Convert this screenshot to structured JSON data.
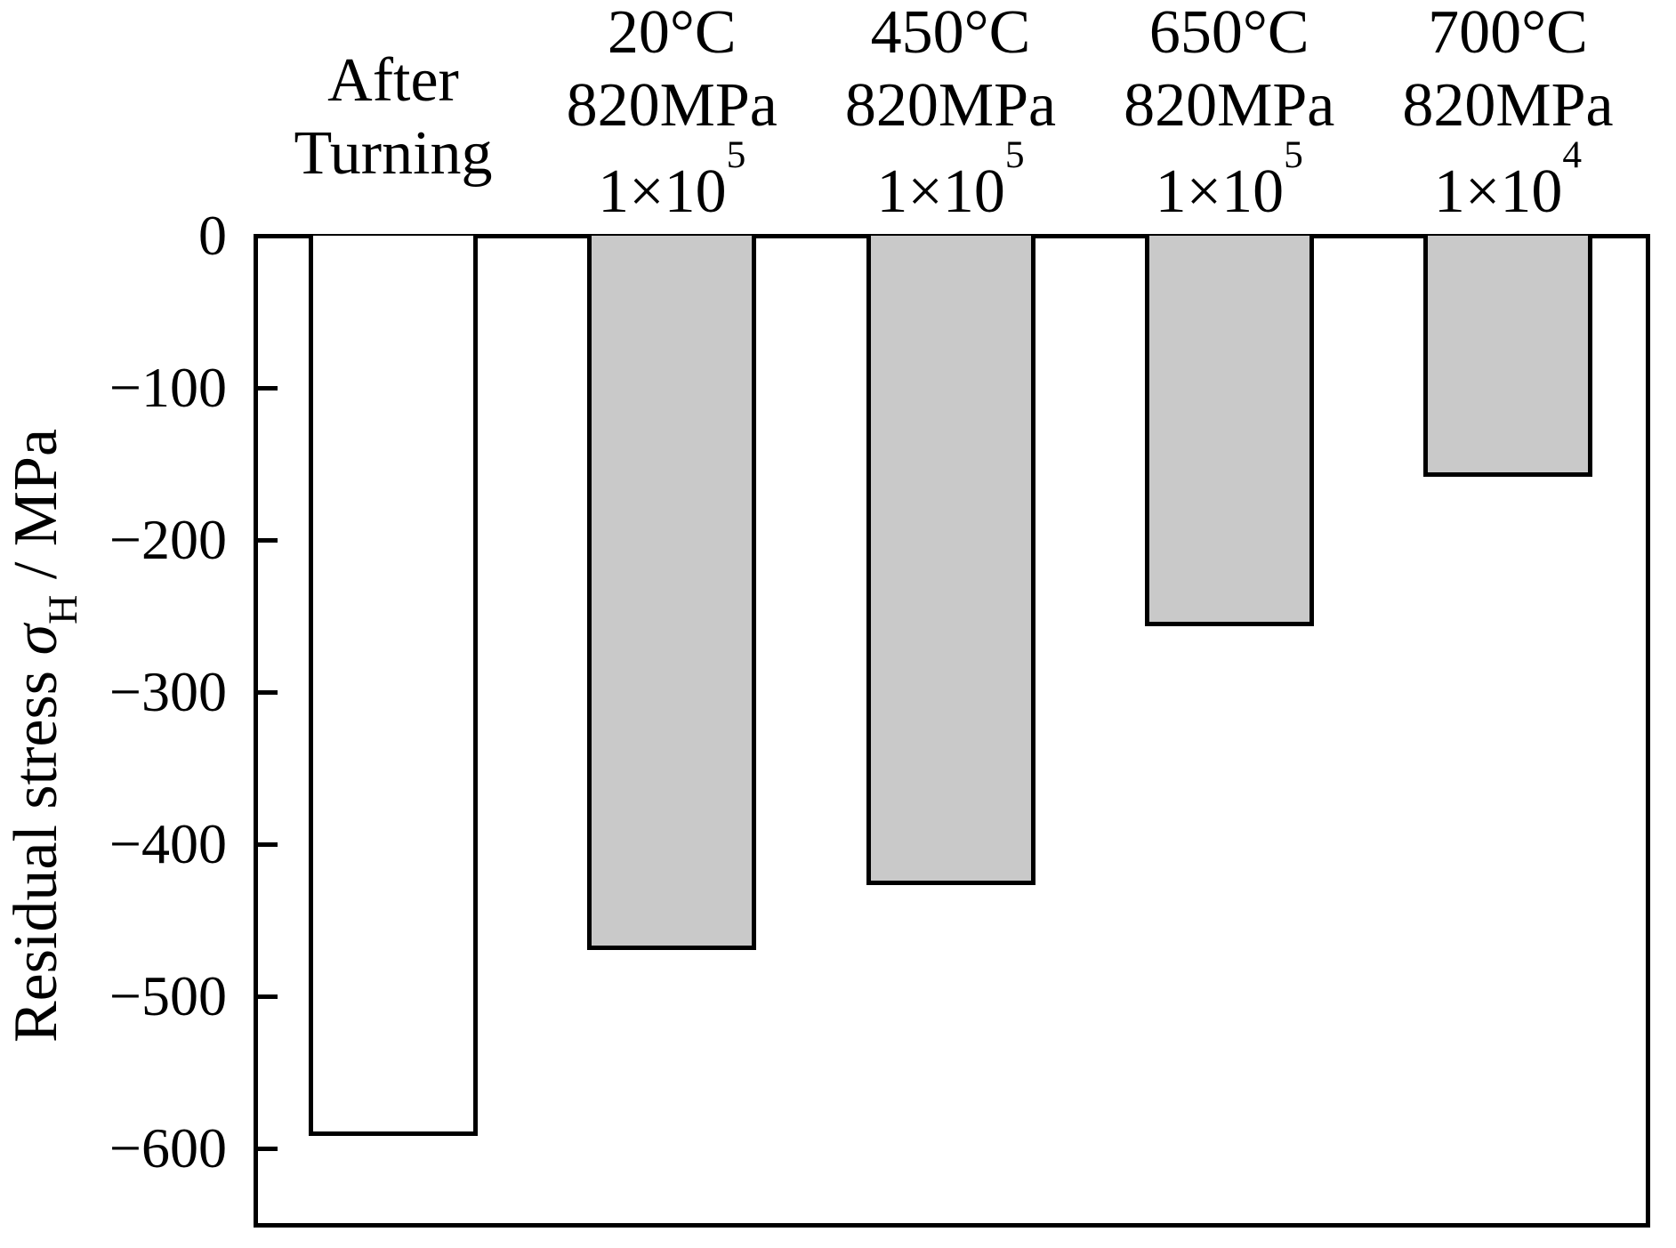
{
  "chart_data": {
    "type": "bar",
    "title": "",
    "ylabel": "Residual stress σH / MPa",
    "ylabel_parts": {
      "prefix": "Residual stress ",
      "sigma": "σ",
      "sigma_sub": "H",
      "suffix": " / MPa"
    },
    "ylim": [
      -650,
      0
    ],
    "ytick_interval": 100,
    "yticks": [
      0,
      -100,
      -200,
      -300,
      -400,
      -500,
      -600
    ],
    "ytick_labels": [
      "0",
      "−100",
      "−200",
      "−300",
      "−400",
      "−500",
      "−600"
    ],
    "grid": false,
    "legend": null,
    "categories": [
      {
        "label": "After Turning",
        "lines": [
          "After",
          "Turning"
        ],
        "sup": ""
      },
      {
        "label": "20C 820MPa 1e5",
        "lines": [
          "20°C",
          "820MPa",
          "1×10"
        ],
        "sup": "5"
      },
      {
        "label": "450C 820MPa 1e5",
        "lines": [
          "450°C",
          "820MPa",
          "1×10"
        ],
        "sup": "5"
      },
      {
        "label": "650C 820MPa 1e5",
        "lines": [
          "650°C",
          "820MPa",
          "1×10"
        ],
        "sup": "5"
      },
      {
        "label": "700C 820MPa 1e4",
        "lines": [
          "700°C",
          "820MPa",
          "1×10"
        ],
        "sup": "4"
      }
    ],
    "values_mpa": [
      -590,
      -468,
      -425,
      -255,
      -157
    ],
    "bar_fills": [
      "#ffffff",
      "#c9c9c9",
      "#c9c9c9",
      "#c9c9c9",
      "#c9c9c9"
    ],
    "bar_border_color": "#000000",
    "axis_color": "#000000",
    "background_color": "#ffffff"
  }
}
